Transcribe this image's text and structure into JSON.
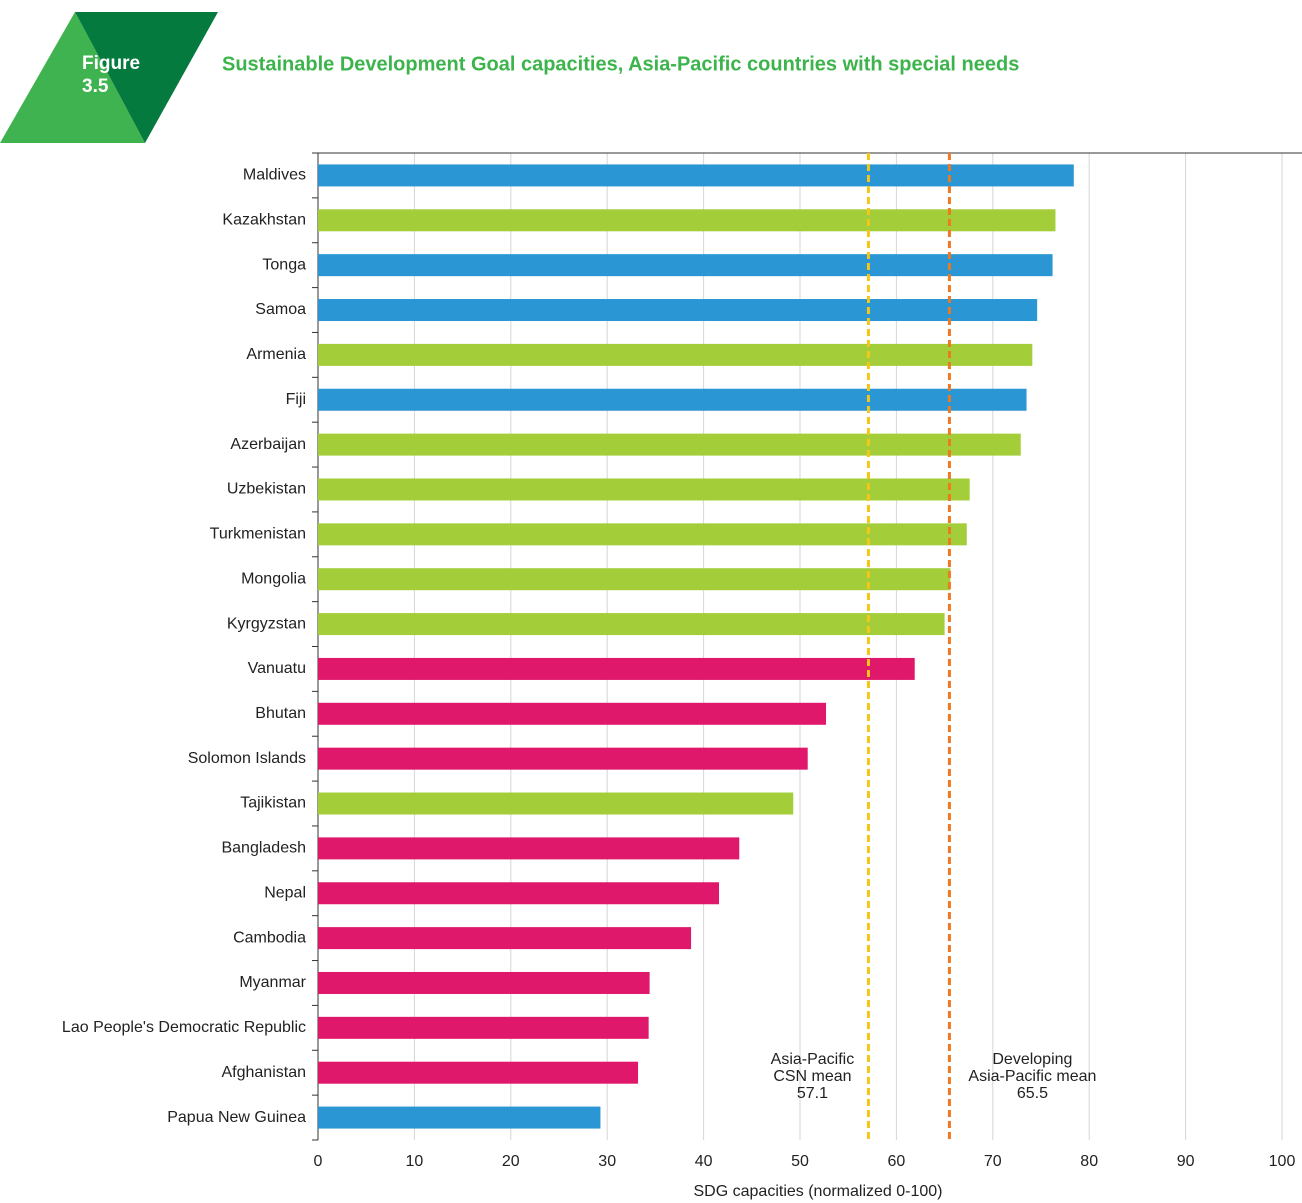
{
  "figure_label": [
    "Figure",
    "3.5"
  ],
  "chart_data": {
    "type": "barh",
    "title": "Sustainable Development Goal capacities, Asia-Pacific countries with special needs",
    "x_label": "SDG capacities (normalized 0-100)",
    "categories": [
      "Maldives",
      "Kazakhstan",
      "Tonga",
      "Samoa",
      "Armenia",
      "Fiji",
      "Azerbaijan",
      "Uzbekistan",
      "Turkmenistan",
      "Mongolia",
      "Kyrgyzstan",
      "Vanuatu",
      "Bhutan",
      "Solomon Islands",
      "Tajikistan",
      "Bangladesh",
      "Nepal",
      "Cambodia",
      "Myanmar",
      "Lao People's Democratic Republic",
      "Afghanistan",
      "Papua New Guinea"
    ],
    "values": [
      78.4,
      76.5,
      76.2,
      74.6,
      74.1,
      73.5,
      72.9,
      67.6,
      67.3,
      65.6,
      65.0,
      61.9,
      52.7,
      50.8,
      49.3,
      43.7,
      41.6,
      38.7,
      34.4,
      34.3,
      33.2,
      29.3
    ],
    "colors": [
      "#2a96d4",
      "#a4ce39",
      "#2a96d4",
      "#2a96d4",
      "#a4ce39",
      "#2a96d4",
      "#a4ce39",
      "#a4ce39",
      "#a4ce39",
      "#a4ce39",
      "#a4ce39",
      "#e0186c",
      "#e0186c",
      "#e0186c",
      "#a4ce39",
      "#e0186c",
      "#e0186c",
      "#e0186c",
      "#e0186c",
      "#e0186c",
      "#e0186c",
      "#2a96d4"
    ],
    "xlim": [
      0,
      100
    ],
    "xticks": [
      0,
      10,
      20,
      30,
      40,
      50,
      60,
      70,
      80,
      90,
      100
    ],
    "grid": true,
    "reference_lines": [
      {
        "label": [
          "Asia-Pacific",
          "CSN mean"
        ],
        "value": 57.1,
        "color": "#f5c518"
      },
      {
        "label": [
          "Developing",
          "Asia-Pacific mean"
        ],
        "value": 65.5,
        "color": "#ec7a23"
      }
    ]
  }
}
